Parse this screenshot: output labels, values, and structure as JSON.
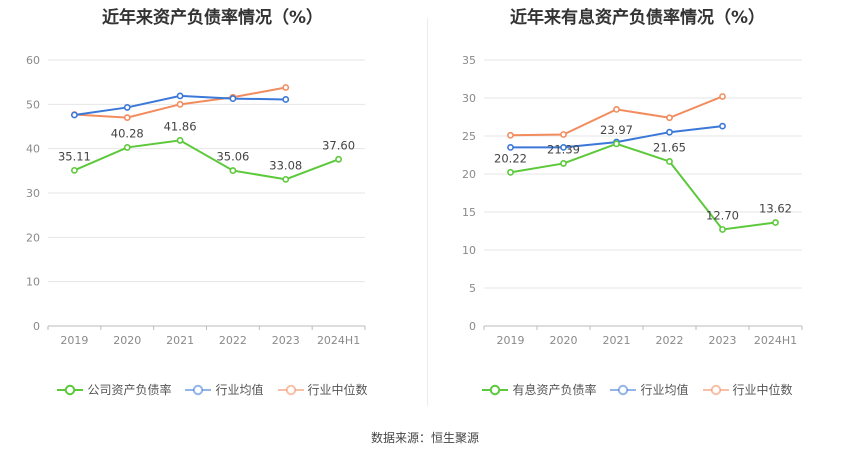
{
  "source": "数据来源：恒生聚源",
  "chart_data": [
    {
      "type": "line",
      "title": "近年来资产负债率情况（%）",
      "categories": [
        "2019",
        "2020",
        "2021",
        "2022",
        "2023",
        "2024H1"
      ],
      "ylim": [
        0,
        60
      ],
      "yticks": [
        0,
        10,
        20,
        30,
        40,
        50,
        60
      ],
      "grid": true,
      "legend_position": "bottom",
      "series": [
        {
          "name": "公司资产负债率",
          "color": "#5cc93b",
          "values": [
            35.11,
            40.28,
            41.86,
            35.06,
            33.08,
            37.6
          ],
          "labels": [
            "35.11",
            "40.28",
            "41.86",
            "35.06",
            "33.08",
            "37.60"
          ]
        },
        {
          "name": "行业均值",
          "color": "#3b78d8",
          "values": [
            47.6,
            49.3,
            51.9,
            51.3,
            51.1,
            null
          ]
        },
        {
          "name": "行业中位数",
          "color": "#f28c5e",
          "values": [
            47.7,
            47.0,
            50.0,
            51.6,
            53.8,
            null
          ]
        }
      ]
    },
    {
      "type": "line",
      "title": "近年来有息资产负债率情况（%）",
      "categories": [
        "2019",
        "2020",
        "2021",
        "2022",
        "2023",
        "2024H1"
      ],
      "ylim": [
        0,
        35
      ],
      "yticks": [
        0,
        5,
        10,
        15,
        20,
        25,
        30,
        35
      ],
      "grid": true,
      "legend_position": "bottom",
      "series": [
        {
          "name": "有息资产负债率",
          "color": "#5cc93b",
          "values": [
            20.22,
            21.39,
            23.97,
            21.65,
            12.7,
            13.62
          ],
          "labels": [
            "20.22",
            "21.39",
            "23.97",
            "21.65",
            "12.70",
            "13.62"
          ]
        },
        {
          "name": "行业均值",
          "color": "#3b78d8",
          "values": [
            23.5,
            23.5,
            24.2,
            25.5,
            26.3,
            null
          ]
        },
        {
          "name": "行业中位数",
          "color": "#f28c5e",
          "values": [
            25.1,
            25.2,
            28.5,
            27.4,
            30.2,
            null
          ]
        }
      ]
    }
  ]
}
